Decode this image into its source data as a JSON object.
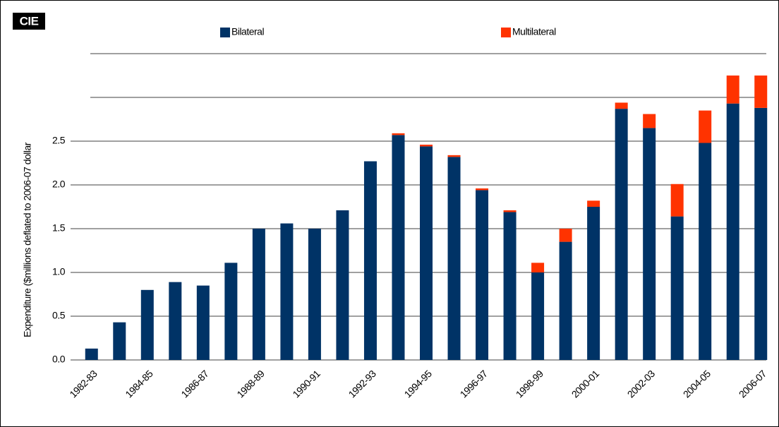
{
  "logo": "CIE",
  "chart_data": {
    "type": "stacked_bar",
    "y_label": "Expenditure ($millions deflated to 2006-07 dollar",
    "categories": [
      "1982-83",
      null,
      "1984-85",
      null,
      "1986-87",
      null,
      "1988-89",
      null,
      "1990-91",
      null,
      "1992-93",
      null,
      "1994-95",
      null,
      "1996-97",
      null,
      "1998-99",
      null,
      "2000-01",
      null,
      "2002-03",
      null,
      "2004-05",
      null,
      "2006-07"
    ],
    "series": [
      {
        "name": "Bilateral",
        "color": "#003366",
        "values": [
          0.13,
          0.43,
          0.8,
          0.89,
          0.85,
          1.11,
          1.5,
          1.56,
          1.5,
          1.71,
          2.27,
          2.57,
          2.44,
          2.32,
          1.94,
          1.69,
          1.0,
          1.35,
          1.75,
          2.87,
          2.65,
          1.64,
          2.48,
          2.93,
          2.88
        ]
      },
      {
        "name": "Multilateral",
        "color": "#ff3300",
        "values": [
          0,
          0,
          0,
          0,
          0,
          0,
          0,
          0,
          0,
          0,
          0,
          0.02,
          0.02,
          0.02,
          0.02,
          0.02,
          0.11,
          0.15,
          0.07,
          0.07,
          0.16,
          0.37,
          0.37,
          0.32,
          0.37
        ]
      }
    ],
    "ylim": [
      0,
      3.5
    ],
    "yticks": [
      {
        "value": 0,
        "label": "0.0"
      },
      0.5,
      {
        "value": 1,
        "label": "1.0"
      },
      1.5,
      {
        "value": 2,
        "label": "2.0"
      },
      2.5,
      {
        "value": 3
      },
      {
        "value": 3.5
      }
    ],
    "grid": true
  }
}
